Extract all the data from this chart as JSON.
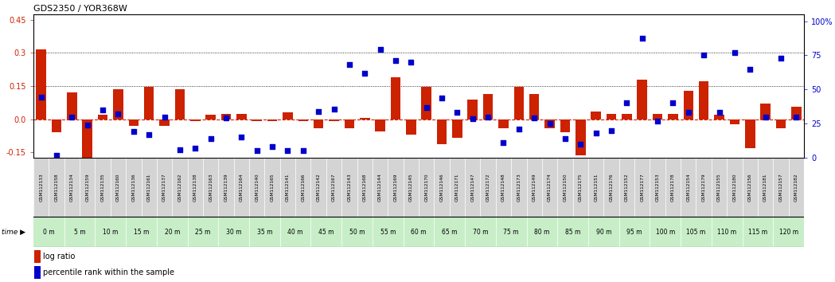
{
  "title": "GDS2350 / YOR368W",
  "samples": [
    "GSM112133",
    "GSM112158",
    "GSM112134",
    "GSM112159",
    "GSM112135",
    "GSM112160",
    "GSM112136",
    "GSM112161",
    "GSM112137",
    "GSM112162",
    "GSM112138",
    "GSM112163",
    "GSM112139",
    "GSM112164",
    "GSM112140",
    "GSM112165",
    "GSM112141",
    "GSM112166",
    "GSM112142",
    "GSM112167",
    "GSM112143",
    "GSM112168",
    "GSM112144",
    "GSM112169",
    "GSM112145",
    "GSM112170",
    "GSM112146",
    "GSM112171",
    "GSM112147",
    "GSM112172",
    "GSM112148",
    "GSM112173",
    "GSM112149",
    "GSM112174",
    "GSM112150",
    "GSM112175",
    "GSM112151",
    "GSM112176",
    "GSM112152",
    "GSM112177",
    "GSM112153",
    "GSM112178",
    "GSM112154",
    "GSM112179",
    "GSM112155",
    "GSM112180",
    "GSM112156",
    "GSM112181",
    "GSM112157",
    "GSM112182"
  ],
  "time_group_labels": [
    "0 m",
    "5 m",
    "10 m",
    "15 m",
    "20 m",
    "25 m",
    "30 m",
    "35 m",
    "40 m",
    "45 m",
    "50 m",
    "55 m",
    "60 m",
    "65 m",
    "70 m",
    "75 m",
    "80 m",
    "85 m",
    "90 m",
    "95 m",
    "100 m",
    "105 m",
    "110 m",
    "115 m",
    "120 m"
  ],
  "log_ratio": [
    0.315,
    -0.06,
    0.12,
    -0.175,
    0.02,
    0.135,
    -0.03,
    0.145,
    -0.03,
    0.135,
    -0.01,
    0.02,
    0.025,
    0.025,
    -0.01,
    -0.01,
    0.03,
    -0.01,
    -0.04,
    -0.01,
    -0.04,
    0.005,
    -0.055,
    0.19,
    -0.07,
    0.145,
    -0.115,
    -0.085,
    0.09,
    0.115,
    -0.04,
    0.145,
    0.115,
    -0.04,
    -0.06,
    -0.165,
    0.035,
    0.025,
    0.025,
    0.18,
    0.025,
    0.025,
    0.13,
    0.17,
    0.02,
    -0.025,
    -0.13,
    0.07,
    -0.04,
    0.055
  ],
  "percentile": [
    0.445,
    0.02,
    0.3,
    0.24,
    0.35,
    0.32,
    0.19,
    0.17,
    0.3,
    0.06,
    0.07,
    0.14,
    0.29,
    0.15,
    0.05,
    0.08,
    0.05,
    0.05,
    0.34,
    0.355,
    0.68,
    0.62,
    0.795,
    0.71,
    0.7,
    0.37,
    0.435,
    0.33,
    0.285,
    0.3,
    0.11,
    0.21,
    0.29,
    0.25,
    0.14,
    0.1,
    0.18,
    0.2,
    0.4,
    0.875,
    0.27,
    0.4,
    0.33,
    0.75,
    0.33,
    0.77,
    0.65,
    0.3,
    0.73,
    0.3
  ],
  "bar_color": "#cc2200",
  "dot_color": "#0000cc",
  "bg_color": "#ffffff",
  "cell_color_gray": "#d4d4d4",
  "cell_color_green": "#c8eec8",
  "ylim_left": [
    -0.175,
    0.475
  ],
  "ylim_right": [
    0.0,
    1.05
  ],
  "yticks_left": [
    -0.15,
    0.0,
    0.15,
    0.3,
    0.45
  ],
  "yticks_right": [
    0.0,
    0.25,
    0.5,
    0.75,
    1.0
  ],
  "ytick_labels_right": [
    "0",
    "25",
    "50",
    "75",
    "100%"
  ],
  "hlines": [
    0.15,
    0.3
  ],
  "legend_bar": "log ratio",
  "legend_dot": "percentile rank within the sample"
}
